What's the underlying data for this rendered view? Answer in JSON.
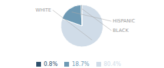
{
  "chart_data": {
    "type": "pie",
    "categories": [
      "WHITE",
      "HISPANIC",
      "BLACK"
    ],
    "values": [
      80.4,
      18.7,
      0.8
    ],
    "value_labels": [
      "80.4%",
      "18.7%",
      "0.8%"
    ],
    "colors": [
      "#d0dce8",
      "#6e9ab5",
      "#2d4f6b"
    ],
    "legend": "bottom"
  }
}
